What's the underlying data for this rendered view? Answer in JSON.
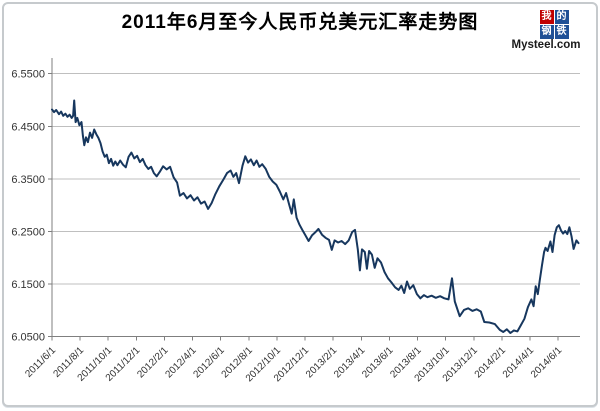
{
  "header": {
    "title": "2011年6月至今人民币兑美元汇率走势图",
    "logo": {
      "tiles": [
        {
          "char": "我",
          "bg": "#c00000"
        },
        {
          "char": "的",
          "bg": "#1f5096"
        },
        {
          "char": "钢",
          "bg": "#1f5096"
        },
        {
          "char": "铁",
          "bg": "#1f5096"
        }
      ],
      "caption": "Mysteel.com"
    }
  },
  "chart_data": {
    "type": "line",
    "title": "2011年6月至今人民币兑美元汇率走势图",
    "xlabel": "",
    "ylabel": "",
    "ylim": [
      6.05,
      6.55
    ],
    "grid": "horizontal",
    "legend": "none",
    "line_color": "#17375e",
    "grid_color": "#bfbfbf",
    "axis_color": "#7f7f7f",
    "label_color": "#333333",
    "y_ticks": [
      6.05,
      6.15,
      6.25,
      6.35,
      6.45,
      6.55
    ],
    "y_tick_labels": [
      "6.0500",
      "6.1500",
      "6.2500",
      "6.3500",
      "6.4500",
      "6.5500"
    ],
    "x_unit": "months since 2011/6/1",
    "x_tick_months": [
      0,
      2,
      4,
      6,
      8,
      10,
      12,
      14,
      16,
      18,
      20,
      22,
      24,
      26,
      28,
      30,
      32,
      34,
      36
    ],
    "x_tick_labels": [
      "2011/6/1",
      "2011/8/1",
      "2011/10/1",
      "2011/12/1",
      "2012/2/1",
      "2012/4/1",
      "2012/6/1",
      "2012/8/1",
      "2012/10/1",
      "2012/12/1",
      "2013/2/1",
      "2013/4/1",
      "2013/6/1",
      "2013/8/1",
      "2013/10/1",
      "2013/12/1",
      "2014/2/1",
      "2014/4/1",
      "2014/6/1"
    ],
    "series": [
      {
        "name": "人民币兑美元汇率",
        "points": [
          [
            0.0,
            6.482
          ],
          [
            0.15,
            6.477
          ],
          [
            0.3,
            6.481
          ],
          [
            0.5,
            6.473
          ],
          [
            0.65,
            6.478
          ],
          [
            0.8,
            6.47
          ],
          [
            0.95,
            6.474
          ],
          [
            1.1,
            6.468
          ],
          [
            1.25,
            6.472
          ],
          [
            1.4,
            6.466
          ],
          [
            1.5,
            6.47
          ],
          [
            1.58,
            6.499
          ],
          [
            1.68,
            6.458
          ],
          [
            1.8,
            6.466
          ],
          [
            1.95,
            6.452
          ],
          [
            2.1,
            6.458
          ],
          [
            2.2,
            6.432
          ],
          [
            2.3,
            6.414
          ],
          [
            2.42,
            6.429
          ],
          [
            2.55,
            6.42
          ],
          [
            2.7,
            6.438
          ],
          [
            2.85,
            6.428
          ],
          [
            3.0,
            6.444
          ],
          [
            3.15,
            6.435
          ],
          [
            3.3,
            6.428
          ],
          [
            3.45,
            6.418
          ],
          [
            3.6,
            6.402
          ],
          [
            3.75,
            6.392
          ],
          [
            3.9,
            6.396
          ],
          [
            4.05,
            6.38
          ],
          [
            4.2,
            6.388
          ],
          [
            4.35,
            6.375
          ],
          [
            4.5,
            6.383
          ],
          [
            4.65,
            6.376
          ],
          [
            4.85,
            6.385
          ],
          [
            5.05,
            6.377
          ],
          [
            5.25,
            6.372
          ],
          [
            5.45,
            6.392
          ],
          [
            5.65,
            6.4
          ],
          [
            5.85,
            6.389
          ],
          [
            6.05,
            6.394
          ],
          [
            6.25,
            6.382
          ],
          [
            6.45,
            6.388
          ],
          [
            6.65,
            6.376
          ],
          [
            6.85,
            6.369
          ],
          [
            7.05,
            6.373
          ],
          [
            7.25,
            6.361
          ],
          [
            7.45,
            6.355
          ],
          [
            7.65,
            6.363
          ],
          [
            7.9,
            6.374
          ],
          [
            8.15,
            6.368
          ],
          [
            8.4,
            6.373
          ],
          [
            8.65,
            6.353
          ],
          [
            8.9,
            6.343
          ],
          [
            9.1,
            6.318
          ],
          [
            9.35,
            6.323
          ],
          [
            9.6,
            6.313
          ],
          [
            9.85,
            6.319
          ],
          [
            10.1,
            6.309
          ],
          [
            10.35,
            6.315
          ],
          [
            10.6,
            6.303
          ],
          [
            10.85,
            6.307
          ],
          [
            11.1,
            6.293
          ],
          [
            11.35,
            6.304
          ],
          [
            11.6,
            6.32
          ],
          [
            11.9,
            6.336
          ],
          [
            12.2,
            6.349
          ],
          [
            12.45,
            6.361
          ],
          [
            12.7,
            6.366
          ],
          [
            12.9,
            6.354
          ],
          [
            13.1,
            6.361
          ],
          [
            13.3,
            6.342
          ],
          [
            13.55,
            6.375
          ],
          [
            13.75,
            6.393
          ],
          [
            13.95,
            6.381
          ],
          [
            14.15,
            6.387
          ],
          [
            14.35,
            6.376
          ],
          [
            14.55,
            6.385
          ],
          [
            14.75,
            6.373
          ],
          [
            14.95,
            6.378
          ],
          [
            15.2,
            6.369
          ],
          [
            15.45,
            6.354
          ],
          [
            15.7,
            6.345
          ],
          [
            15.95,
            6.339
          ],
          [
            16.2,
            6.326
          ],
          [
            16.45,
            6.311
          ],
          [
            16.65,
            6.323
          ],
          [
            16.85,
            6.303
          ],
          [
            17.05,
            6.284
          ],
          [
            17.2,
            6.311
          ],
          [
            17.4,
            6.276
          ],
          [
            17.6,
            6.263
          ],
          [
            17.8,
            6.253
          ],
          [
            18.0,
            6.244
          ],
          [
            18.25,
            6.232
          ],
          [
            18.5,
            6.243
          ],
          [
            18.75,
            6.249
          ],
          [
            18.95,
            6.255
          ],
          [
            19.2,
            6.244
          ],
          [
            19.45,
            6.238
          ],
          [
            19.7,
            6.234
          ],
          [
            19.9,
            6.215
          ],
          [
            20.1,
            6.233
          ],
          [
            20.35,
            6.229
          ],
          [
            20.6,
            6.232
          ],
          [
            20.85,
            6.226
          ],
          [
            21.1,
            6.233
          ],
          [
            21.35,
            6.249
          ],
          [
            21.55,
            6.253
          ],
          [
            21.75,
            6.216
          ],
          [
            21.9,
            6.176
          ],
          [
            22.05,
            6.216
          ],
          [
            22.25,
            6.211
          ],
          [
            22.4,
            6.179
          ],
          [
            22.55,
            6.213
          ],
          [
            22.75,
            6.206
          ],
          [
            22.95,
            6.181
          ],
          [
            23.15,
            6.199
          ],
          [
            23.4,
            6.191
          ],
          [
            23.65,
            6.173
          ],
          [
            23.9,
            6.161
          ],
          [
            24.15,
            6.153
          ],
          [
            24.4,
            6.144
          ],
          [
            24.65,
            6.139
          ],
          [
            24.85,
            6.147
          ],
          [
            25.05,
            6.133
          ],
          [
            25.25,
            6.155
          ],
          [
            25.45,
            6.141
          ],
          [
            25.7,
            6.148
          ],
          [
            25.95,
            6.131
          ],
          [
            26.2,
            6.123
          ],
          [
            26.45,
            6.129
          ],
          [
            26.7,
            6.125
          ],
          [
            27.0,
            6.128
          ],
          [
            27.3,
            6.124
          ],
          [
            27.6,
            6.127
          ],
          [
            27.9,
            6.123
          ],
          [
            28.2,
            6.121
          ],
          [
            28.45,
            6.161
          ],
          [
            28.65,
            6.117
          ],
          [
            29.0,
            6.089
          ],
          [
            29.3,
            6.101
          ],
          [
            29.6,
            6.104
          ],
          [
            29.9,
            6.099
          ],
          [
            30.2,
            6.102
          ],
          [
            30.5,
            6.098
          ],
          [
            30.75,
            6.078
          ],
          [
            31.1,
            6.077
          ],
          [
            31.5,
            6.074
          ],
          [
            31.85,
            6.063
          ],
          [
            32.1,
            6.059
          ],
          [
            32.35,
            6.064
          ],
          [
            32.6,
            6.057
          ],
          [
            32.85,
            6.062
          ],
          [
            33.1,
            6.06
          ],
          [
            33.35,
            6.072
          ],
          [
            33.6,
            6.084
          ],
          [
            33.85,
            6.106
          ],
          [
            34.1,
            6.121
          ],
          [
            34.25,
            6.108
          ],
          [
            34.4,
            6.146
          ],
          [
            34.55,
            6.131
          ],
          [
            34.7,
            6.159
          ],
          [
            34.85,
            6.186
          ],
          [
            35.0,
            6.211
          ],
          [
            35.1,
            6.219
          ],
          [
            35.25,
            6.213
          ],
          [
            35.45,
            6.231
          ],
          [
            35.6,
            6.211
          ],
          [
            35.75,
            6.243
          ],
          [
            35.9,
            6.258
          ],
          [
            36.05,
            6.262
          ],
          [
            36.2,
            6.252
          ],
          [
            36.35,
            6.246
          ],
          [
            36.5,
            6.251
          ],
          [
            36.65,
            6.245
          ],
          [
            36.8,
            6.258
          ],
          [
            36.95,
            6.241
          ],
          [
            37.1,
            6.217
          ],
          [
            37.3,
            6.233
          ],
          [
            37.45,
            6.228
          ]
        ]
      }
    ]
  }
}
